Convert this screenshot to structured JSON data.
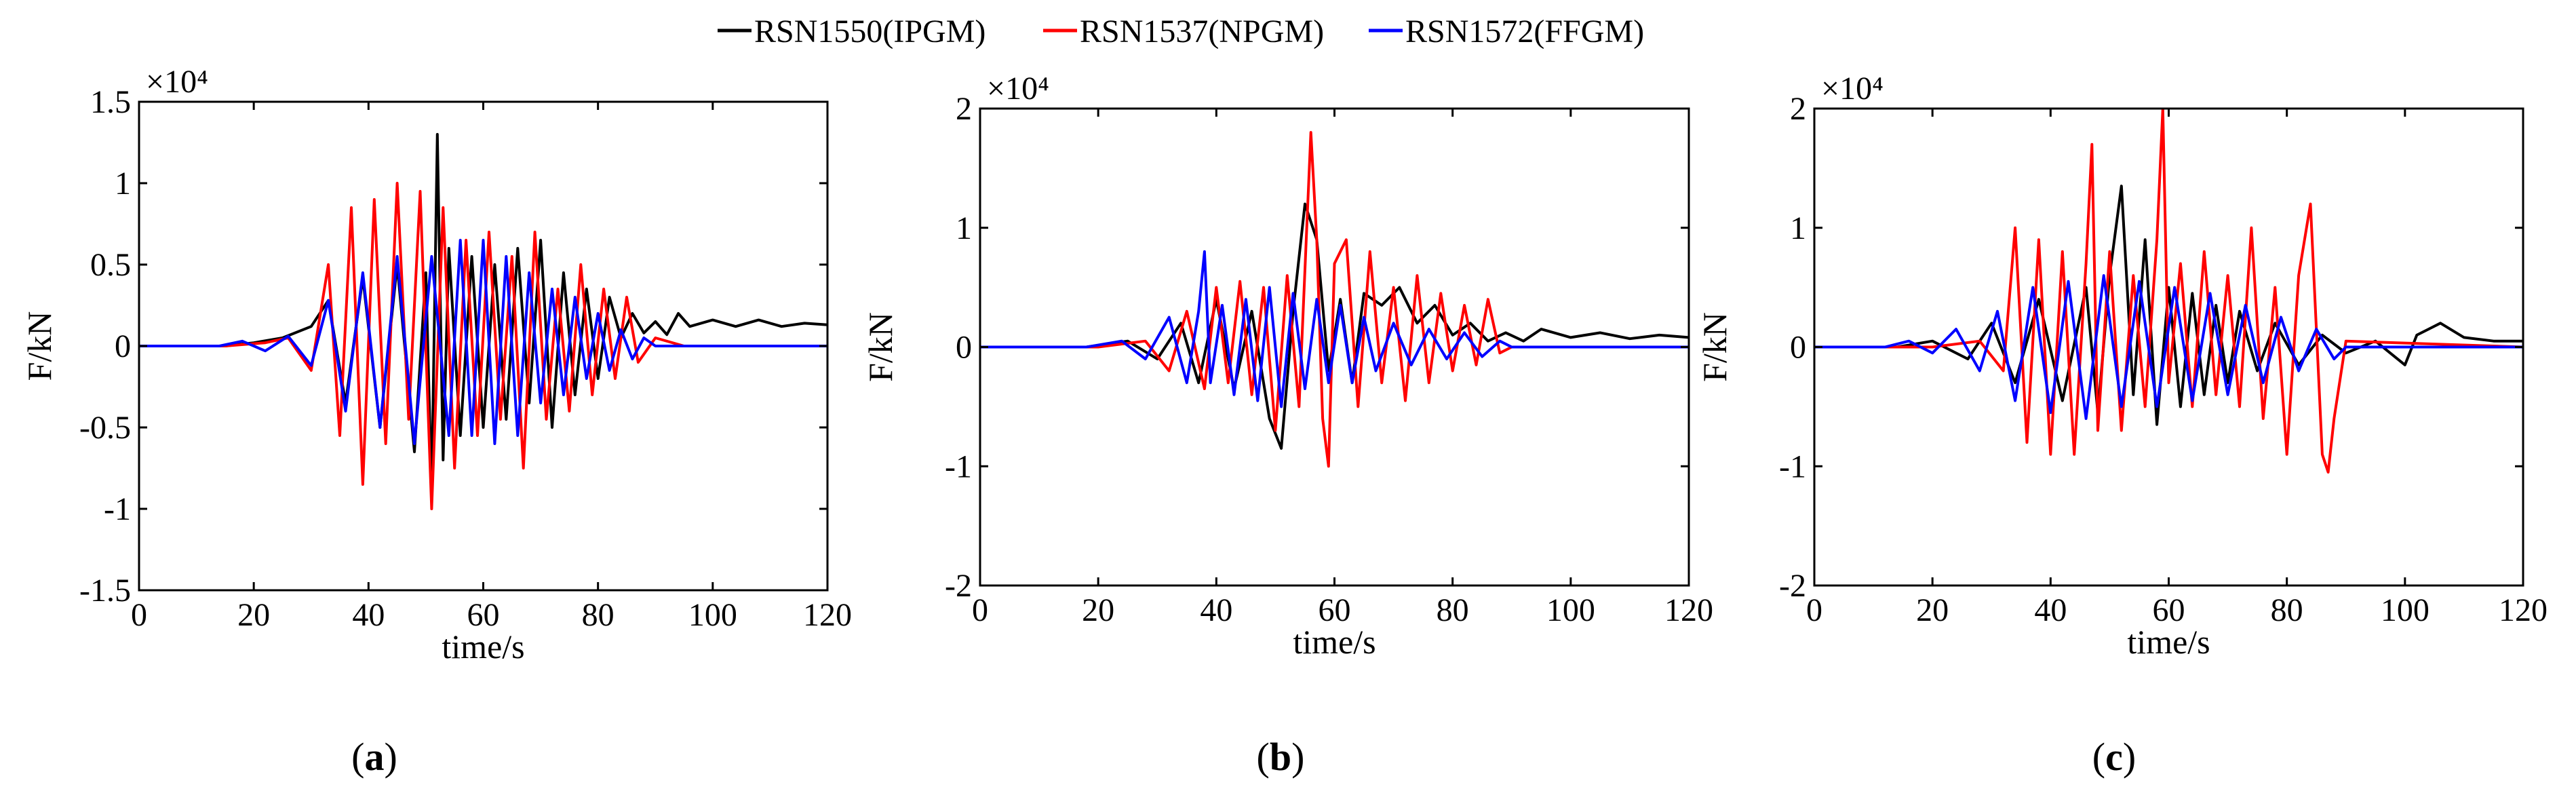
{
  "legend": {
    "placement": "top-center",
    "entries": [
      {
        "label": "RSN1550(IPGM)",
        "color": "#000000"
      },
      {
        "label": "RSN1537(NPGM)",
        "color": "#ff0000"
      },
      {
        "label": "RSN1572(FFGM)",
        "color": "#0000ff"
      }
    ]
  },
  "chart_data": [
    {
      "type": "line",
      "panel_label": "(a)",
      "label_letter": "a",
      "xlabel": "time/s",
      "ylabel": "F/kN",
      "exponent_label": "×10⁴",
      "xlim": [
        0,
        120
      ],
      "ylim": [
        -1.5,
        1.5
      ],
      "xticks": [
        0,
        20,
        40,
        60,
        80,
        100,
        120
      ],
      "yticks": [
        -1.5,
        -1,
        -0.5,
        0,
        0.5,
        1,
        1.5
      ],
      "ytick_labels": [
        "-1.5",
        "-1",
        "-0.5",
        "0",
        "0.5",
        "1",
        "1.5"
      ],
      "grid": false,
      "series": [
        {
          "name": "RSN1550(IPGM)",
          "color": "#000000",
          "x": [
            0,
            15,
            20,
            25,
            30,
            33,
            36,
            39,
            42,
            45,
            48,
            50,
            51,
            52,
            53,
            54,
            56,
            58,
            60,
            62,
            64,
            66,
            68,
            70,
            72,
            74,
            76,
            78,
            80,
            82,
            84,
            86,
            88,
            90,
            92,
            94,
            96,
            100,
            104,
            108,
            112,
            116,
            120
          ],
          "y": [
            0,
            0,
            0.02,
            0.05,
            0.12,
            0.28,
            -0.35,
            0.42,
            -0.5,
            0.5,
            -0.65,
            0.45,
            -0.9,
            1.3,
            -0.7,
            0.6,
            -0.55,
            0.55,
            -0.5,
            0.5,
            -0.45,
            0.6,
            -0.35,
            0.65,
            -0.5,
            0.45,
            -0.3,
            0.35,
            -0.2,
            0.3,
            0.05,
            0.2,
            0.08,
            0.15,
            0.07,
            0.2,
            0.12,
            0.16,
            0.12,
            0.16,
            0.12,
            0.14,
            0.13
          ]
        },
        {
          "name": "RSN1537(NPGM)",
          "color": "#ff0000",
          "x": [
            0,
            15,
            22,
            26,
            30,
            33,
            35,
            37,
            39,
            41,
            43,
            45,
            47,
            49,
            51,
            53,
            55,
            57,
            59,
            61,
            63,
            65,
            67,
            69,
            71,
            73,
            75,
            77,
            79,
            81,
            83,
            85,
            87,
            90,
            95,
            120
          ],
          "y": [
            0,
            0,
            0.02,
            0.05,
            -0.15,
            0.5,
            -0.55,
            0.85,
            -0.85,
            0.9,
            -0.6,
            1.0,
            -0.45,
            0.95,
            -1.0,
            0.85,
            -0.75,
            0.65,
            -0.55,
            0.7,
            -0.45,
            0.55,
            -0.75,
            0.7,
            -0.45,
            0.35,
            -0.4,
            0.5,
            -0.3,
            0.35,
            -0.2,
            0.3,
            -0.1,
            0.05,
            0,
            0
          ]
        },
        {
          "name": "RSN1572(FFGM)",
          "color": "#0000ff",
          "x": [
            0,
            14,
            18,
            22,
            26,
            30,
            33,
            36,
            39,
            42,
            45,
            48,
            51,
            54,
            56,
            58,
            60,
            62,
            64,
            66,
            68,
            70,
            72,
            74,
            76,
            78,
            80,
            82,
            84,
            86,
            88,
            90,
            92,
            120
          ],
          "y": [
            0,
            0,
            0.03,
            -0.03,
            0.06,
            -0.12,
            0.28,
            -0.4,
            0.45,
            -0.5,
            0.55,
            -0.6,
            0.55,
            -0.55,
            0.65,
            -0.55,
            0.65,
            -0.6,
            0.55,
            -0.55,
            0.45,
            -0.35,
            0.35,
            -0.3,
            0.3,
            -0.2,
            0.2,
            -0.15,
            0.1,
            -0.08,
            0.05,
            0,
            0,
            0
          ]
        }
      ]
    },
    {
      "type": "line",
      "panel_label": "(b)",
      "label_letter": "b",
      "xlabel": "time/s",
      "ylabel": "F/kN",
      "exponent_label": "×10⁴",
      "xlim": [
        0,
        120
      ],
      "ylim": [
        -2,
        2
      ],
      "xticks": [
        0,
        20,
        40,
        60,
        80,
        100,
        120
      ],
      "yticks": [
        -2,
        -1,
        0,
        1,
        2
      ],
      "ytick_labels": [
        "-2",
        "-1",
        "0",
        "1",
        "2"
      ],
      "grid": false,
      "series": [
        {
          "name": "RSN1550(IPGM)",
          "color": "#000000",
          "x": [
            0,
            18,
            25,
            30,
            34,
            37,
            40,
            43,
            46,
            49,
            51,
            53,
            55,
            57,
            59,
            61,
            63,
            65,
            68,
            71,
            74,
            77,
            80,
            83,
            86,
            89,
            92,
            95,
            100,
            105,
            110,
            115,
            120
          ],
          "y": [
            0,
            0,
            0.05,
            -0.1,
            0.2,
            -0.3,
            0.4,
            -0.35,
            0.3,
            -0.6,
            -0.85,
            0.3,
            1.2,
            0.9,
            -0.2,
            0.4,
            -0.3,
            0.45,
            0.35,
            0.5,
            0.2,
            0.35,
            0.1,
            0.2,
            0.05,
            0.12,
            0.05,
            0.15,
            0.08,
            0.12,
            0.07,
            0.1,
            0.08
          ]
        },
        {
          "name": "RSN1537(NPGM)",
          "color": "#ff0000",
          "x": [
            0,
            20,
            28,
            32,
            35,
            38,
            40,
            42,
            44,
            46,
            48,
            50,
            52,
            54,
            56,
            57,
            58,
            59,
            60,
            62,
            64,
            66,
            68,
            70,
            72,
            74,
            76,
            78,
            80,
            82,
            84,
            86,
            88,
            90,
            120
          ],
          "y": [
            0,
            0,
            0.05,
            -0.2,
            0.3,
            -0.35,
            0.5,
            -0.3,
            0.55,
            -0.4,
            0.5,
            -0.7,
            0.6,
            -0.5,
            1.8,
            0.9,
            -0.6,
            -1.0,
            0.7,
            0.9,
            -0.5,
            0.8,
            -0.3,
            0.5,
            -0.45,
            0.6,
            -0.3,
            0.45,
            -0.2,
            0.35,
            -0.15,
            0.4,
            -0.05,
            0,
            0
          ]
        },
        {
          "name": "RSN1572(FFGM)",
          "color": "#0000ff",
          "x": [
            0,
            18,
            24,
            28,
            32,
            35,
            37,
            38,
            39,
            41,
            43,
            45,
            47,
            49,
            51,
            53,
            55,
            57,
            59,
            61,
            63,
            65,
            67,
            70,
            73,
            76,
            79,
            82,
            85,
            88,
            90,
            120
          ],
          "y": [
            0,
            0,
            0.05,
            -0.1,
            0.25,
            -0.3,
            0.3,
            0.8,
            -0.3,
            0.35,
            -0.4,
            0.4,
            -0.45,
            0.5,
            -0.5,
            0.45,
            -0.35,
            0.4,
            -0.3,
            0.35,
            -0.3,
            0.25,
            -0.2,
            0.2,
            -0.15,
            0.15,
            -0.1,
            0.12,
            -0.08,
            0.05,
            0,
            0
          ]
        }
      ]
    },
    {
      "type": "line",
      "panel_label": "(c)",
      "label_letter": "c",
      "xlabel": "time/s",
      "ylabel": "F/kN",
      "exponent_label": "×10⁴",
      "xlim": [
        0,
        120
      ],
      "ylim": [
        -2,
        2
      ],
      "xticks": [
        0,
        20,
        40,
        60,
        80,
        100,
        120
      ],
      "yticks": [
        -2,
        -1,
        0,
        1,
        2
      ],
      "ytick_labels": [
        "-2",
        "-1",
        "0",
        "1",
        "2"
      ],
      "grid": false,
      "series": [
        {
          "name": "RSN1550(IPGM)",
          "color": "#000000",
          "x": [
            0,
            14,
            20,
            26,
            30,
            34,
            38,
            42,
            46,
            48,
            50,
            52,
            54,
            56,
            58,
            60,
            62,
            64,
            66,
            68,
            70,
            72,
            75,
            78,
            82,
            86,
            90,
            95,
            100,
            102,
            104,
            106,
            110,
            115,
            120
          ],
          "y": [
            0,
            0,
            0.05,
            -0.1,
            0.2,
            -0.3,
            0.4,
            -0.45,
            0.5,
            -0.55,
            0.6,
            1.35,
            -0.4,
            0.9,
            -0.65,
            0.5,
            -0.5,
            0.45,
            -0.4,
            0.35,
            -0.3,
            0.3,
            -0.2,
            0.2,
            -0.15,
            0.1,
            -0.05,
            0.05,
            -0.15,
            0.1,
            0.15,
            0.2,
            0.08,
            0.05,
            0.05
          ]
        },
        {
          "name": "RSN1537(NPGM)",
          "color": "#ff0000",
          "x": [
            0,
            20,
            28,
            32,
            34,
            36,
            38,
            40,
            42,
            44,
            46,
            47,
            48,
            50,
            52,
            54,
            56,
            58,
            59,
            60,
            62,
            64,
            66,
            68,
            70,
            72,
            74,
            76,
            78,
            80,
            82,
            84,
            86,
            87,
            88,
            90,
            120
          ],
          "y": [
            0,
            0,
            0.05,
            -0.2,
            1.0,
            -0.8,
            0.9,
            -0.9,
            0.8,
            -0.9,
            0.7,
            1.7,
            -0.7,
            0.8,
            -0.7,
            0.6,
            -0.5,
            0.9,
            2.0,
            -0.3,
            0.7,
            -0.5,
            0.8,
            -0.4,
            0.6,
            -0.5,
            1.0,
            -0.6,
            0.5,
            -0.9,
            0.6,
            1.2,
            -0.9,
            -1.05,
            -0.6,
            0.05,
            0
          ]
        },
        {
          "name": "RSN1572(FFGM)",
          "color": "#0000ff",
          "x": [
            0,
            12,
            16,
            20,
            24,
            28,
            31,
            34,
            37,
            40,
            43,
            46,
            49,
            52,
            55,
            58,
            61,
            64,
            67,
            70,
            73,
            76,
            79,
            82,
            85,
            88,
            90,
            120
          ],
          "y": [
            0,
            0,
            0.05,
            -0.05,
            0.15,
            -0.2,
            0.3,
            -0.45,
            0.5,
            -0.55,
            0.55,
            -0.6,
            0.6,
            -0.5,
            0.55,
            -0.5,
            0.5,
            -0.45,
            0.45,
            -0.4,
            0.35,
            -0.3,
            0.25,
            -0.2,
            0.15,
            -0.1,
            0,
            0
          ]
        }
      ]
    }
  ]
}
